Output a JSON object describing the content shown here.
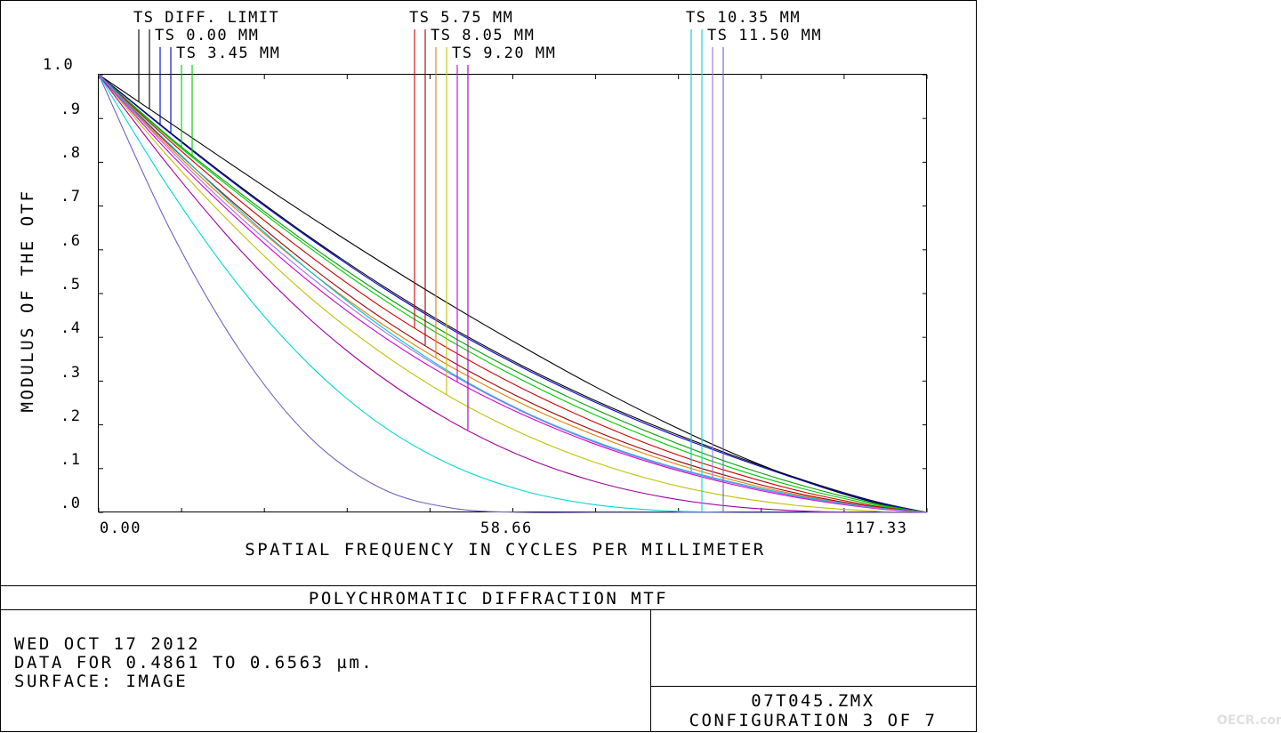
{
  "chart_data": {
    "type": "line",
    "title": "POLYCHROMATIC DIFFRACTION MTF",
    "xlabel": "SPATIAL FREQUENCY IN CYCLES PER MILLIMETER",
    "ylabel": "MODULUS OF THE OTF",
    "xlim": [
      0,
      117.33
    ],
    "ylim": [
      0,
      1.0
    ],
    "x_tick_labels": [
      "0.00",
      "58.66",
      "117.33"
    ],
    "y_tick_labels": [
      ".0",
      ".1",
      ".2",
      ".3",
      ".4",
      ".5",
      ".6",
      ".7",
      ".8",
      ".9",
      "1.0"
    ],
    "grid": false,
    "x": [
      0,
      10,
      20,
      30,
      40,
      50,
      60,
      70,
      80,
      90,
      100,
      110,
      117.33
    ],
    "series": [
      {
        "name": "TS DIFF. LIMIT",
        "color": "#000000",
        "values": [
          1.0,
          0.891,
          0.782,
          0.675,
          0.572,
          0.473,
          0.379,
          0.29,
          0.208,
          0.134,
          0.071,
          0.022,
          0.0
        ]
      },
      {
        "name": "TS 0.00 MM",
        "color": "#000000",
        "values": [
          1.0,
          0.87,
          0.745,
          0.628,
          0.52,
          0.422,
          0.335,
          0.258,
          0.19,
          0.129,
          0.073,
          0.025,
          0.0
        ]
      },
      {
        "name": "TS 0.00 MM",
        "color": "#0000c0",
        "values": [
          1.0,
          0.868,
          0.742,
          0.625,
          0.516,
          0.418,
          0.331,
          0.254,
          0.186,
          0.126,
          0.071,
          0.024,
          0.0
        ]
      },
      {
        "name": "TS 3.45 MM",
        "color": "#00a000",
        "values": [
          1.0,
          0.858,
          0.73,
          0.61,
          0.5,
          0.402,
          0.315,
          0.238,
          0.17,
          0.11,
          0.06,
          0.02,
          0.0
        ]
      },
      {
        "name": "TS 3.45 MM",
        "color": "#00cc00",
        "values": [
          1.0,
          0.855,
          0.725,
          0.603,
          0.49,
          0.39,
          0.302,
          0.225,
          0.158,
          0.1,
          0.053,
          0.017,
          0.0
        ]
      },
      {
        "name": "TS 5.75 MM",
        "color": "#d00000",
        "values": [
          1.0,
          0.85,
          0.712,
          0.585,
          0.47,
          0.37,
          0.283,
          0.208,
          0.143,
          0.09,
          0.046,
          0.014,
          0.0
        ]
      },
      {
        "name": "TS 5.75 MM",
        "color": "#a00000",
        "values": [
          1.0,
          0.84,
          0.695,
          0.562,
          0.445,
          0.345,
          0.26,
          0.188,
          0.128,
          0.079,
          0.04,
          0.012,
          0.0
        ]
      },
      {
        "name": "TS 8.05 MM",
        "color": "#e08000",
        "values": [
          1.0,
          0.835,
          0.685,
          0.55,
          0.432,
          0.332,
          0.248,
          0.178,
          0.12,
          0.073,
          0.037,
          0.011,
          0.0
        ]
      },
      {
        "name": "TS 8.05 MM",
        "color": "#c0c000",
        "values": [
          1.0,
          0.81,
          0.64,
          0.49,
          0.365,
          0.262,
          0.18,
          0.116,
          0.068,
          0.035,
          0.014,
          0.003,
          0.0
        ]
      },
      {
        "name": "TS 9.20 MM",
        "color": "#d000d0",
        "values": [
          1.0,
          0.822,
          0.665,
          0.525,
          0.405,
          0.305,
          0.224,
          0.158,
          0.105,
          0.063,
          0.031,
          0.009,
          0.0
        ]
      },
      {
        "name": "TS 9.20 MM",
        "color": "#a000a0",
        "values": [
          1.0,
          0.79,
          0.6,
          0.44,
          0.31,
          0.207,
          0.128,
          0.072,
          0.035,
          0.013,
          0.003,
          0.0,
          0.0
        ]
      },
      {
        "name": "TS 10.35 MM",
        "color": "#00c0e0",
        "values": [
          1.0,
          0.842,
          0.69,
          0.55,
          0.425,
          0.318,
          0.232,
          0.164,
          0.11,
          0.068,
          0.035,
          0.011,
          0.0
        ]
      },
      {
        "name": "TS 10.35 MM",
        "color": "#00d8d8",
        "values": [
          1.0,
          0.74,
          0.515,
          0.335,
          0.2,
          0.108,
          0.05,
          0.018,
          0.004,
          0.0,
          0.0,
          0.0,
          0.0
        ]
      },
      {
        "name": "TS 11.50 MM",
        "color": "#a070e0",
        "values": [
          1.0,
          0.83,
          0.675,
          0.538,
          0.418,
          0.315,
          0.23,
          0.162,
          0.108,
          0.066,
          0.033,
          0.01,
          0.0
        ]
      },
      {
        "name": "TS 11.50 MM",
        "color": "#7060c0",
        "values": [
          1.0,
          0.65,
          0.37,
          0.17,
          0.055,
          0.01,
          0.0,
          0.0,
          0.0,
          0.0,
          0.0,
          0.0,
          0.0
        ]
      }
    ],
    "legend": [
      {
        "label": "TS DIFF. LIMIT",
        "colors": [
          "#000000",
          "#000000"
        ]
      },
      {
        "label": "TS 0.00 MM",
        "colors": [
          "#0000c0",
          "#0000c0"
        ]
      },
      {
        "label": "TS 3.45 MM",
        "colors": [
          "#00cc00",
          "#00cc00"
        ]
      },
      {
        "label": "TS 5.75 MM",
        "colors": [
          "#d00000",
          "#a00000"
        ]
      },
      {
        "label": "TS 8.05 MM",
        "colors": [
          "#e08000",
          "#c0c000"
        ]
      },
      {
        "label": "TS 9.20 MM",
        "colors": [
          "#d000d0",
          "#a000a0"
        ]
      },
      {
        "label": "TS 10.35 MM",
        "colors": [
          "#00c0e0",
          "#00d8d8"
        ]
      },
      {
        "label": "TS 11.50 MM",
        "colors": [
          "#a070e0",
          "#7060c0"
        ]
      }
    ],
    "legend_placement": "top"
  },
  "info": {
    "date": "WED OCT 17 2012",
    "data_range": "DATA FOR 0.4861 TO 0.6563 µm.",
    "surface": "SURFACE: IMAGE",
    "file": "07T045.ZMX",
    "configuration": "CONFIGURATION 3 OF 7"
  },
  "watermark": "OECR.com"
}
